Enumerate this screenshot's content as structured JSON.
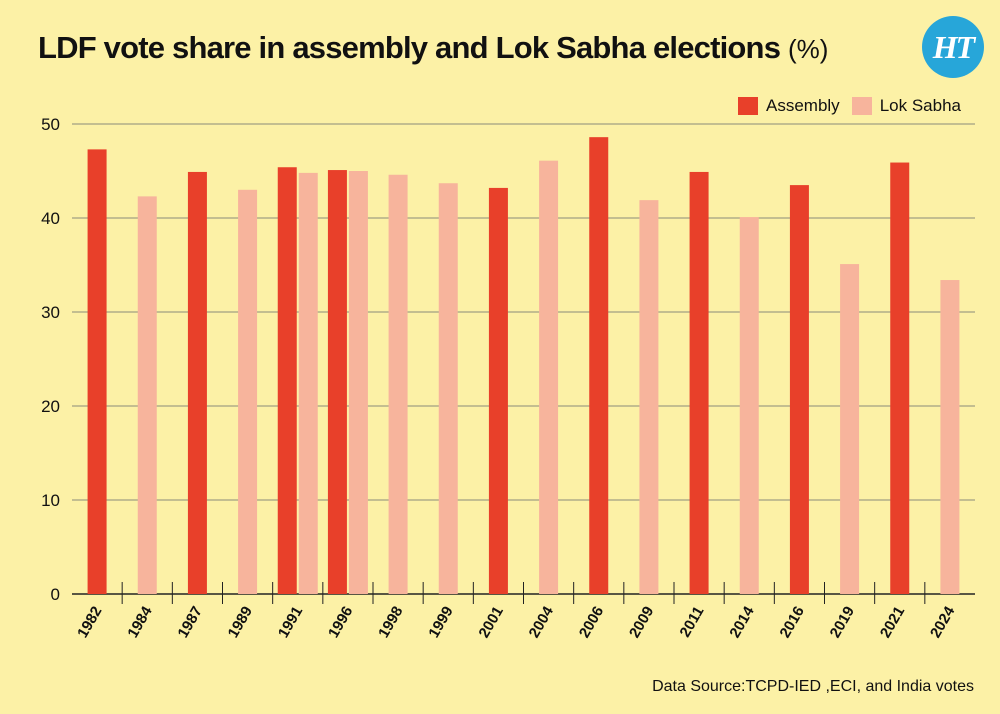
{
  "header": {
    "title": "LDF vote share in assembly and Lok Sabha elections",
    "unit": "(%)",
    "logo_text": "HT"
  },
  "footer": {
    "source": "Data Source:TCPD-IED ,ECI, and India votes"
  },
  "colors": {
    "assembly": "#e8402a",
    "lok_sabha": "#f7b49c",
    "background": "#fcf1a6",
    "grid": "#8a8a7a"
  },
  "chart_data": {
    "type": "bar",
    "title": "LDF vote share in assembly and Lok Sabha elections (%)",
    "xlabel": "",
    "ylabel": "",
    "ylim": [
      0,
      50
    ],
    "yticks": [
      0,
      10,
      20,
      30,
      40,
      50
    ],
    "grid": true,
    "legend_position": "top-right",
    "categories": [
      "1982",
      "1984",
      "1987",
      "1989",
      "1991",
      "1996",
      "1998",
      "1999",
      "2001",
      "2004",
      "2006",
      "2009",
      "2011",
      "2014",
      "2016",
      "2019",
      "2021",
      "2024"
    ],
    "series": [
      {
        "name": "Assembly",
        "color": "#e8402a",
        "values": [
          47.3,
          null,
          44.9,
          null,
          45.4,
          45.1,
          null,
          null,
          43.2,
          null,
          48.6,
          null,
          44.9,
          null,
          43.5,
          null,
          45.9,
          null
        ]
      },
      {
        "name": "Lok Sabha",
        "color": "#f7b49c",
        "values": [
          null,
          42.3,
          null,
          43.0,
          44.8,
          45.0,
          44.6,
          43.7,
          null,
          46.1,
          null,
          41.9,
          null,
          40.1,
          null,
          35.1,
          null,
          33.4
        ]
      }
    ]
  }
}
